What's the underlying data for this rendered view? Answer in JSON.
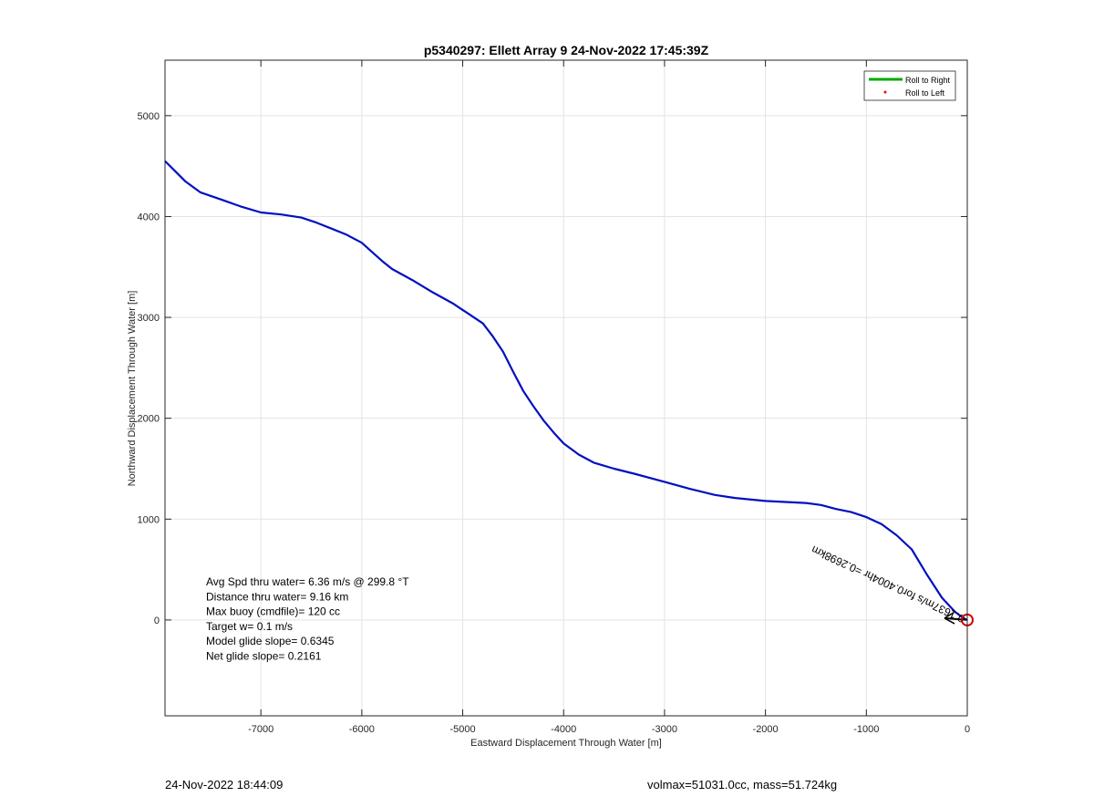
{
  "chart_data": {
    "type": "line",
    "title": "p5340297: Ellett Array 9 24-Nov-2022 17:45:39Z",
    "xlabel": "Eastward Displacement Through Water [m]",
    "ylabel": "Northward Displacement Through Water [m]",
    "xlim": [
      -7950,
      0
    ],
    "ylim": [
      -950,
      5550
    ],
    "xticks": [
      -7000,
      -6000,
      -5000,
      -4000,
      -3000,
      -2000,
      -1000,
      0
    ],
    "yticks": [
      0,
      1000,
      2000,
      3000,
      4000,
      5000
    ],
    "grid": true,
    "legend": {
      "position": "top-right",
      "entries": [
        {
          "label": "Roll to Right",
          "color": "#00aa00",
          "marker": "line"
        },
        {
          "label": "Roll to Left",
          "color": "#ff0000",
          "marker": "dot"
        }
      ]
    },
    "series": [
      {
        "color": "#0010c0",
        "x": [
          -7950,
          -7850,
          -7750,
          -7600,
          -7400,
          -7200,
          -7000,
          -6800,
          -6600,
          -6450,
          -6300,
          -6150,
          -6000,
          -5900,
          -5800,
          -5700,
          -5500,
          -5300,
          -5100,
          -4950,
          -4800,
          -4700,
          -4600,
          -4500,
          -4400,
          -4300,
          -4200,
          -4100,
          -4000,
          -3850,
          -3700,
          -3500,
          -3300,
          -3000,
          -2750,
          -2500,
          -2300,
          -2000,
          -1800,
          -1600,
          -1450,
          -1300,
          -1150,
          -1000,
          -850,
          -700,
          -550,
          -400,
          -250,
          -120,
          -40,
          0
        ],
        "y": [
          4550,
          4450,
          4350,
          4240,
          4170,
          4100,
          4040,
          4020,
          3990,
          3940,
          3880,
          3820,
          3740,
          3650,
          3560,
          3480,
          3370,
          3250,
          3140,
          3040,
          2940,
          2810,
          2660,
          2460,
          2270,
          2120,
          1980,
          1860,
          1750,
          1640,
          1560,
          1500,
          1450,
          1370,
          1300,
          1240,
          1210,
          1180,
          1170,
          1160,
          1140,
          1100,
          1070,
          1020,
          950,
          840,
          700,
          450,
          220,
          80,
          20,
          0
        ]
      }
    ],
    "annotations": {
      "stats": [
        "Avg Spd thru water=  6.36 m/s @ 299.8 °T",
        "Distance thru water=  9.16 km",
        "Max buoy (cmdfile)= 120 cc",
        "Target w= 0.1 m/s",
        "Model glide slope= 0.6345",
        "Net glide slope= 0.2161"
      ],
      "current_label": "0.1637m/s for0.4004hr =0.2698km",
      "end_marker": {
        "x": 0,
        "y": 0,
        "color": "#d00000"
      }
    }
  },
  "footer": {
    "left": "24-Nov-2022 18:44:09",
    "right": "volmax=51031.0cc, mass=51.724kg"
  }
}
